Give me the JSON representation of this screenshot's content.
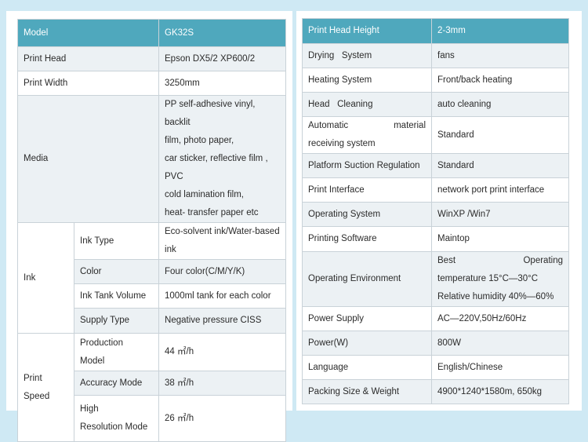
{
  "left": {
    "header": {
      "label": "Model",
      "value": "GK32S"
    },
    "print_head": {
      "label": "Print Head",
      "value": "Epson DX5/2   XP600/2"
    },
    "print_width": {
      "label": "Print Width",
      "value": "3250mm"
    },
    "media": {
      "label": "Media",
      "lines": [
        "PP self-adhesive vinyl, backlit",
        "film, photo paper,",
        "car sticker, reflective film , PVC",
        "cold lamination film,",
        "heat- transfer paper etc"
      ]
    },
    "ink": {
      "label": "Ink",
      "ink_type": {
        "label": "Ink Type",
        "lines": [
          "Eco-solvent   ink/Water-based",
          "ink"
        ]
      },
      "color": {
        "label": "Color",
        "value": "Four color(C/M/Y/K)"
      },
      "tank": {
        "label": "Ink Tank Volume",
        "value": "1000ml tank for each color"
      },
      "supply": {
        "label": "Supply Type",
        "value": "Negative pressure CISS"
      }
    },
    "print_speed": {
      "label_lines": [
        "Print",
        "Speed"
      ],
      "production": {
        "label_lines": [
          "Production",
          "Model"
        ],
        "value": "44 ㎡/h"
      },
      "accuracy": {
        "label": "Accuracy Mode",
        "value": "38 ㎡/h"
      },
      "high_res": {
        "label_lines": [
          "High",
          "Resolution Mode"
        ],
        "value": "26 ㎡/h"
      }
    }
  },
  "right": {
    "rows": [
      {
        "label": "Print Head Height",
        "value": "2-3mm"
      },
      {
        "label": "Drying   System",
        "value": "fans"
      },
      {
        "label": "Heating System",
        "value": "Front/back heating"
      },
      {
        "label": "Head   Cleaning",
        "value": "auto cleaning"
      },
      {
        "label_lines": [
          "Automatic material",
          "receiving system"
        ],
        "value": "Standard"
      },
      {
        "label": "Platform Suction Regulation",
        "value": "Standard"
      },
      {
        "label": "Print Interface",
        "value": "network port print interface"
      },
      {
        "label": "Operating System",
        "value": "WinXP /Win7"
      },
      {
        "label": "Printing Software",
        "value": "Maintop"
      },
      {
        "label": "Operating Environment",
        "value_lines": [
          "Best Operating",
          "temperature  15°C—30°C",
          "Relative humidity  40%—60%"
        ]
      },
      {
        "label": "Power Supply",
        "value": "AC—220V,50Hz/60Hz"
      },
      {
        "label": "Power(W)",
        "value": "800W"
      },
      {
        "label": "Language",
        "value": "English/Chinese"
      },
      {
        "label": "Packing Size & Weight",
        "value": "4900*1240*1580m, 650kg"
      }
    ]
  }
}
